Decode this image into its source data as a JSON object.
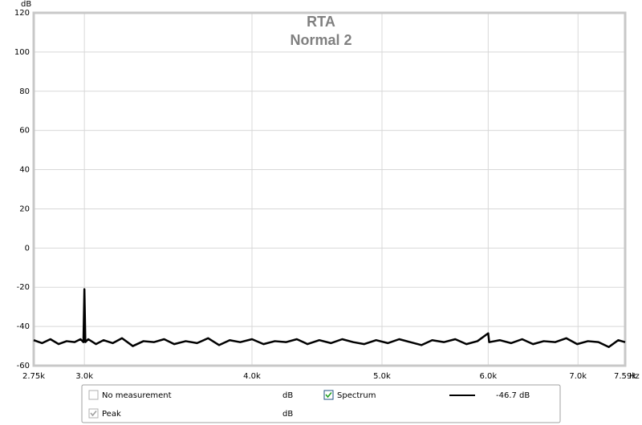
{
  "chart_data": {
    "type": "line",
    "title": "RTA",
    "subtitle": "Normal 2",
    "y_label": "dB",
    "x_label": "Hz",
    "x_log": true,
    "grid": true,
    "xlim": [
      2750,
      7590
    ],
    "ylim": [
      -60,
      120
    ],
    "xticks": [
      {
        "value": 2750,
        "label": "2.75k"
      },
      {
        "value": 3000,
        "label": "3.0k"
      },
      {
        "value": 4000,
        "label": "4.0k"
      },
      {
        "value": 5000,
        "label": "5.0k"
      },
      {
        "value": 6000,
        "label": "6.0k"
      },
      {
        "value": 7000,
        "label": "7.0k"
      },
      {
        "value": 7590,
        "label": "7.59k"
      }
    ],
    "yticks": [
      -60,
      -40,
      -20,
      0,
      20,
      40,
      60,
      80,
      100,
      120
    ],
    "x": [
      2750,
      2790,
      2830,
      2870,
      2910,
      2950,
      2980,
      2995,
      3000,
      3005,
      3020,
      3060,
      3100,
      3150,
      3200,
      3260,
      3320,
      3380,
      3440,
      3500,
      3570,
      3640,
      3710,
      3780,
      3850,
      3920,
      4000,
      4080,
      4160,
      4240,
      4320,
      4400,
      4490,
      4580,
      4670,
      4760,
      4850,
      4950,
      5050,
      5150,
      5250,
      5350,
      5450,
      5560,
      5670,
      5780,
      5890,
      6000,
      6010,
      6120,
      6240,
      6360,
      6480,
      6600,
      6730,
      6860,
      6990,
      7120,
      7250,
      7380,
      7500,
      7590
    ],
    "series": [
      {
        "name": "Spectrum",
        "color": "#000000",
        "checked": true,
        "readout": "-46.7 dB",
        "values": [
          -47,
          -48.5,
          -46.5,
          -49,
          -47.5,
          -48,
          -46.5,
          -48,
          -21,
          -48,
          -46.5,
          -49,
          -47,
          -48.5,
          -46,
          -50,
          -47.5,
          -48,
          -46.5,
          -49,
          -47.5,
          -48.5,
          -46,
          -49.5,
          -47,
          -48,
          -46.5,
          -49,
          -47.5,
          -48,
          -46.5,
          -49,
          -47,
          -48.5,
          -46.5,
          -48,
          -49,
          -47,
          -48.5,
          -46.5,
          -48,
          -49.5,
          -47,
          -48,
          -46.5,
          -49,
          -47.5,
          -43.5,
          -48,
          -47,
          -48.5,
          -46.5,
          -49,
          -47.5,
          -48,
          -46,
          -49,
          -47.5,
          -48,
          -50.5,
          -47,
          -48
        ]
      }
    ],
    "legend_items": [
      {
        "name": "No measurement",
        "unit": "dB",
        "checked": false,
        "enabled": false
      },
      {
        "name": "Peak",
        "unit": "dB",
        "checked": true,
        "enabled": false
      }
    ]
  }
}
